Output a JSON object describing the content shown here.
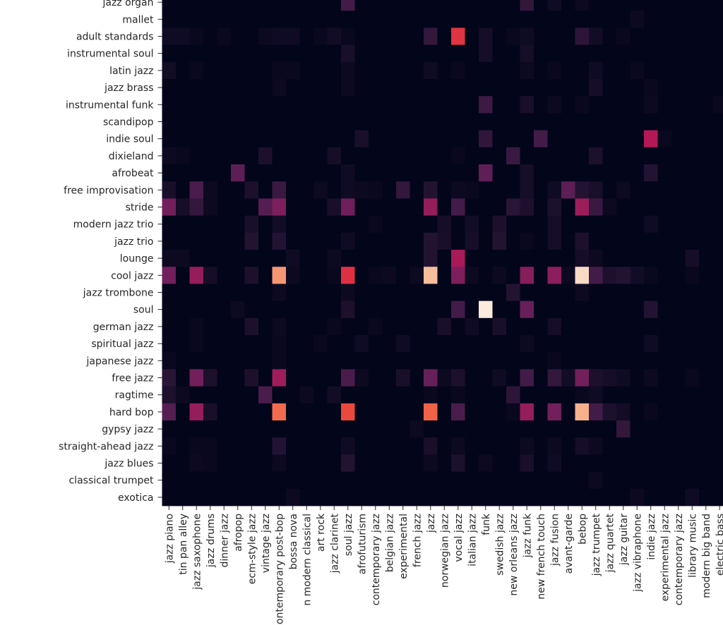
{
  "chart_data": {
    "type": "heatmap",
    "colormap": "rocket",
    "value_range": [
      0,
      1
    ],
    "colorbar": false,
    "rows": [
      "jazz organ",
      "mallet",
      "adult standards",
      "instrumental soul",
      "latin jazz",
      "jazz brass",
      "instrumental funk",
      "scandipop",
      "indie soul",
      "dixieland",
      "afrobeat",
      "free improvisation",
      "stride",
      "modern jazz trio",
      "jazz trio",
      "lounge",
      "cool jazz",
      "jazz trombone",
      "soul",
      "german jazz",
      "spiritual jazz",
      "japanese jazz",
      "free jazz",
      "ragtime",
      "hard bop",
      "gypsy jazz",
      "straight-ahead jazz",
      "jazz blues",
      "classical trumpet",
      "exotica"
    ],
    "columns": [
      "jazz piano",
      "tin pan alley",
      "jazz saxophone",
      "jazz drums",
      "dinner jazz",
      "afropop",
      "ecm-style jazz",
      "vintage jazz",
      "contemporary post-bop",
      "bossa nova",
      "n modern classical",
      "art rock",
      "jazz clarinet",
      "soul jazz",
      "afrofuturism",
      "contemporary jazz",
      "belgian jazz",
      "experimental",
      "french jazz",
      "jazz",
      "norwegian jazz",
      "vocal jazz",
      "italian jazz",
      "funk",
      "swedish jazz",
      "new orleans jazz",
      "jazz funk",
      "new french touch",
      "jazz fusion",
      "avant-garde",
      "bebop",
      "jazz trumpet",
      "jazz quartet",
      "jazz guitar",
      "jazz vibraphone",
      "indie jazz",
      "experimental jazz",
      "contemporary jazz",
      "library music",
      "modern big band",
      "electric bass"
    ],
    "default_value": 0,
    "cells": [
      [
        0,
        13,
        0.2
      ],
      [
        0,
        26,
        0.15
      ],
      [
        0,
        28,
        0.04
      ],
      [
        0,
        30,
        0.03
      ],
      [
        1,
        34,
        0.03
      ],
      [
        2,
        0,
        0.04
      ],
      [
        2,
        1,
        0.04
      ],
      [
        2,
        2,
        0.02
      ],
      [
        2,
        4,
        0.02
      ],
      [
        2,
        7,
        0.03
      ],
      [
        2,
        8,
        0.04
      ],
      [
        2,
        9,
        0.04
      ],
      [
        2,
        11,
        0.02
      ],
      [
        2,
        12,
        0.05
      ],
      [
        2,
        13,
        0.02
      ],
      [
        2,
        19,
        0.15
      ],
      [
        2,
        21,
        0.63
      ],
      [
        2,
        23,
        0.06
      ],
      [
        2,
        25,
        0.02
      ],
      [
        2,
        26,
        0.04
      ],
      [
        2,
        30,
        0.13
      ],
      [
        2,
        31,
        0.05
      ],
      [
        2,
        33,
        0.02
      ],
      [
        3,
        13,
        0.07
      ],
      [
        3,
        23,
        0.06
      ],
      [
        3,
        26,
        0.06
      ],
      [
        4,
        0,
        0.05
      ],
      [
        4,
        2,
        0.02
      ],
      [
        4,
        8,
        0.02
      ],
      [
        4,
        9,
        0.02
      ],
      [
        4,
        13,
        0.03
      ],
      [
        4,
        19,
        0.04
      ],
      [
        4,
        21,
        0.02
      ],
      [
        4,
        26,
        0.03
      ],
      [
        4,
        28,
        0.02
      ],
      [
        4,
        31,
        0.04
      ],
      [
        4,
        34,
        0.02
      ],
      [
        5,
        8,
        0.03
      ],
      [
        5,
        13,
        0.03
      ],
      [
        5,
        31,
        0.06
      ],
      [
        5,
        35,
        0.02
      ],
      [
        6,
        23,
        0.18
      ],
      [
        6,
        26,
        0.07
      ],
      [
        6,
        28,
        0.03
      ],
      [
        6,
        30,
        0.02
      ],
      [
        6,
        35,
        0.03
      ],
      [
        6,
        40,
        0.02
      ],
      [
        8,
        14,
        0.07
      ],
      [
        8,
        23,
        0.14
      ],
      [
        8,
        27,
        0.2
      ],
      [
        8,
        35,
        0.5
      ],
      [
        8,
        36,
        0.02
      ],
      [
        9,
        0,
        0.03
      ],
      [
        9,
        1,
        0.02
      ],
      [
        9,
        7,
        0.08
      ],
      [
        9,
        12,
        0.06
      ],
      [
        9,
        21,
        0.02
      ],
      [
        9,
        25,
        0.17
      ],
      [
        9,
        31,
        0.08
      ],
      [
        10,
        5,
        0.27
      ],
      [
        10,
        13,
        0.04
      ],
      [
        10,
        23,
        0.28
      ],
      [
        10,
        26,
        0.06
      ],
      [
        10,
        35,
        0.1
      ],
      [
        11,
        0,
        0.07
      ],
      [
        11,
        2,
        0.22
      ],
      [
        11,
        3,
        0.03
      ],
      [
        11,
        6,
        0.08
      ],
      [
        11,
        8,
        0.17
      ],
      [
        11,
        11,
        0.03
      ],
      [
        11,
        13,
        0.04
      ],
      [
        11,
        14,
        0.03
      ],
      [
        11,
        15,
        0.02
      ],
      [
        11,
        17,
        0.15
      ],
      [
        11,
        19,
        0.1
      ],
      [
        11,
        21,
        0.03
      ],
      [
        11,
        22,
        0.02
      ],
      [
        11,
        26,
        0.06
      ],
      [
        11,
        28,
        0.04
      ],
      [
        11,
        29,
        0.27
      ],
      [
        11,
        30,
        0.1
      ],
      [
        11,
        31,
        0.07
      ],
      [
        11,
        33,
        0.03
      ],
      [
        12,
        0,
        0.33
      ],
      [
        12,
        1,
        0.06
      ],
      [
        12,
        2,
        0.15
      ],
      [
        12,
        3,
        0.03
      ],
      [
        12,
        7,
        0.25
      ],
      [
        12,
        8,
        0.36
      ],
      [
        12,
        12,
        0.07
      ],
      [
        12,
        13,
        0.32
      ],
      [
        12,
        19,
        0.42
      ],
      [
        12,
        21,
        0.2
      ],
      [
        12,
        25,
        0.12
      ],
      [
        12,
        26,
        0.08
      ],
      [
        12,
        28,
        0.08
      ],
      [
        12,
        30,
        0.44
      ],
      [
        12,
        31,
        0.17
      ],
      [
        12,
        32,
        0.03
      ],
      [
        13,
        6,
        0.07
      ],
      [
        13,
        8,
        0.05
      ],
      [
        13,
        15,
        0.02
      ],
      [
        13,
        20,
        0.06
      ],
      [
        13,
        22,
        0.05
      ],
      [
        13,
        24,
        0.08
      ],
      [
        13,
        28,
        0.06
      ],
      [
        13,
        35,
        0.04
      ],
      [
        14,
        6,
        0.1
      ],
      [
        14,
        8,
        0.1
      ],
      [
        14,
        13,
        0.04
      ],
      [
        14,
        19,
        0.1
      ],
      [
        14,
        20,
        0.07
      ],
      [
        14,
        22,
        0.06
      ],
      [
        14,
        24,
        0.1
      ],
      [
        14,
        26,
        0.02
      ],
      [
        14,
        28,
        0.06
      ],
      [
        14,
        30,
        0.08
      ],
      [
        15,
        0,
        0.03
      ],
      [
        15,
        1,
        0.03
      ],
      [
        15,
        9,
        0.04
      ],
      [
        15,
        12,
        0.03
      ],
      [
        15,
        19,
        0.1
      ],
      [
        15,
        21,
        0.47
      ],
      [
        15,
        30,
        0.06
      ],
      [
        15,
        31,
        0.03
      ],
      [
        15,
        38,
        0.06
      ],
      [
        16,
        0,
        0.33
      ],
      [
        16,
        2,
        0.42
      ],
      [
        16,
        3,
        0.06
      ],
      [
        16,
        6,
        0.08
      ],
      [
        16,
        8,
        0.85
      ],
      [
        16,
        9,
        0.03
      ],
      [
        16,
        12,
        0.02
      ],
      [
        16,
        13,
        0.62
      ],
      [
        16,
        15,
        0.02
      ],
      [
        16,
        16,
        0.03
      ],
      [
        16,
        18,
        0.03
      ],
      [
        16,
        19,
        0.92
      ],
      [
        16,
        21,
        0.36
      ],
      [
        16,
        22,
        0.03
      ],
      [
        16,
        24,
        0.03
      ],
      [
        16,
        26,
        0.38
      ],
      [
        16,
        28,
        0.4
      ],
      [
        16,
        29,
        0.03
      ],
      [
        16,
        30,
        0.97
      ],
      [
        16,
        31,
        0.2
      ],
      [
        16,
        32,
        0.08
      ],
      [
        16,
        33,
        0.1
      ],
      [
        16,
        34,
        0.05
      ],
      [
        16,
        35,
        0.02
      ],
      [
        16,
        38,
        0.02
      ],
      [
        17,
        8,
        0.03
      ],
      [
        17,
        13,
        0.03
      ],
      [
        17,
        25,
        0.1
      ],
      [
        17,
        30,
        0.03
      ],
      [
        18,
        5,
        0.03
      ],
      [
        18,
        13,
        0.08
      ],
      [
        18,
        21,
        0.2
      ],
      [
        18,
        23,
        1.0
      ],
      [
        18,
        26,
        0.3
      ],
      [
        18,
        35,
        0.1
      ],
      [
        19,
        2,
        0.02
      ],
      [
        19,
        6,
        0.08
      ],
      [
        19,
        8,
        0.03
      ],
      [
        19,
        12,
        0.02
      ],
      [
        19,
        15,
        0.02
      ],
      [
        19,
        20,
        0.07
      ],
      [
        19,
        22,
        0.04
      ],
      [
        19,
        24,
        0.07
      ],
      [
        19,
        28,
        0.06
      ],
      [
        20,
        2,
        0.02
      ],
      [
        20,
        8,
        0.02
      ],
      [
        20,
        11,
        0.02
      ],
      [
        20,
        14,
        0.04
      ],
      [
        20,
        17,
        0.04
      ],
      [
        20,
        26,
        0.03
      ],
      [
        20,
        35,
        0.04
      ],
      [
        21,
        0,
        0.02
      ],
      [
        21,
        8,
        0.02
      ],
      [
        21,
        28,
        0.02
      ],
      [
        22,
        0,
        0.12
      ],
      [
        22,
        2,
        0.33
      ],
      [
        22,
        3,
        0.08
      ],
      [
        22,
        6,
        0.08
      ],
      [
        22,
        8,
        0.45
      ],
      [
        22,
        13,
        0.22
      ],
      [
        22,
        14,
        0.03
      ],
      [
        22,
        17,
        0.07
      ],
      [
        22,
        19,
        0.3
      ],
      [
        22,
        20,
        0.03
      ],
      [
        22,
        21,
        0.08
      ],
      [
        22,
        24,
        0.04
      ],
      [
        22,
        26,
        0.2
      ],
      [
        22,
        28,
        0.15
      ],
      [
        22,
        29,
        0.05
      ],
      [
        22,
        30,
        0.33
      ],
      [
        22,
        31,
        0.08
      ],
      [
        22,
        32,
        0.06
      ],
      [
        22,
        33,
        0.04
      ],
      [
        22,
        35,
        0.03
      ],
      [
        22,
        38,
        0.02
      ],
      [
        23,
        0,
        0.08
      ],
      [
        23,
        1,
        0.03
      ],
      [
        23,
        7,
        0.22
      ],
      [
        23,
        10,
        0.03
      ],
      [
        23,
        12,
        0.05
      ],
      [
        23,
        19,
        0.02
      ],
      [
        23,
        21,
        0.02
      ],
      [
        23,
        25,
        0.13
      ],
      [
        23,
        30,
        0.02
      ],
      [
        23,
        31,
        0.04
      ],
      [
        24,
        0,
        0.25
      ],
      [
        24,
        2,
        0.42
      ],
      [
        24,
        3,
        0.07
      ],
      [
        24,
        8,
        0.76
      ],
      [
        24,
        13,
        0.68
      ],
      [
        24,
        19,
        0.74
      ],
      [
        24,
        21,
        0.22
      ],
      [
        24,
        25,
        0.02
      ],
      [
        24,
        26,
        0.42
      ],
      [
        24,
        28,
        0.33
      ],
      [
        24,
        30,
        0.9
      ],
      [
        24,
        31,
        0.2
      ],
      [
        24,
        32,
        0.08
      ],
      [
        24,
        33,
        0.05
      ],
      [
        24,
        35,
        0.02
      ],
      [
        25,
        18,
        0.03
      ],
      [
        25,
        33,
        0.15
      ],
      [
        26,
        0,
        0.02
      ],
      [
        26,
        2,
        0.02
      ],
      [
        26,
        3,
        0.02
      ],
      [
        26,
        8,
        0.1
      ],
      [
        26,
        13,
        0.04
      ],
      [
        26,
        19,
        0.07
      ],
      [
        26,
        21,
        0.03
      ],
      [
        26,
        26,
        0.03
      ],
      [
        26,
        28,
        0.03
      ],
      [
        26,
        30,
        0.06
      ],
      [
        26,
        31,
        0.03
      ],
      [
        27,
        2,
        0.03
      ],
      [
        27,
        3,
        0.02
      ],
      [
        27,
        8,
        0.03
      ],
      [
        27,
        13,
        0.1
      ],
      [
        27,
        19,
        0.03
      ],
      [
        27,
        21,
        0.08
      ],
      [
        27,
        23,
        0.03
      ],
      [
        27,
        26,
        0.07
      ],
      [
        27,
        28,
        0.04
      ],
      [
        28,
        31,
        0.03
      ],
      [
        29,
        9,
        0.03
      ],
      [
        29,
        34,
        0.03
      ],
      [
        29,
        38,
        0.04
      ]
    ]
  }
}
